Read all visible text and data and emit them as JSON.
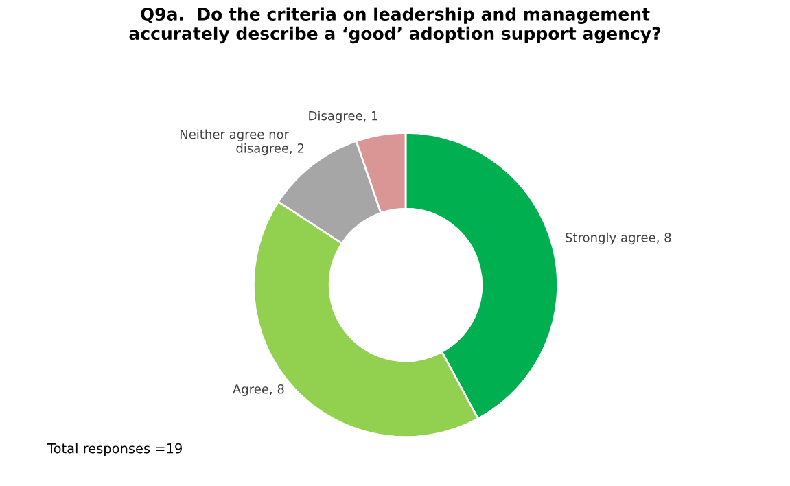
{
  "chart_data": {
    "type": "donut",
    "title": "Q9a.  Do the criteria on leadership and management\naccurately describe a ‘good’ adoption support agency?",
    "categories": [
      "Strongly agree",
      "Agree",
      "Neither agree nor disagree",
      "Disagree"
    ],
    "values": [
      8,
      8,
      2,
      1
    ],
    "colors": [
      "#00b050",
      "#92d050",
      "#a6a6a6",
      "#da9694"
    ],
    "value_labels": [
      ", 8",
      ", 8",
      ", 2",
      ", 1"
    ],
    "annotations": [
      "Total responses =19"
    ],
    "legend": false
  }
}
